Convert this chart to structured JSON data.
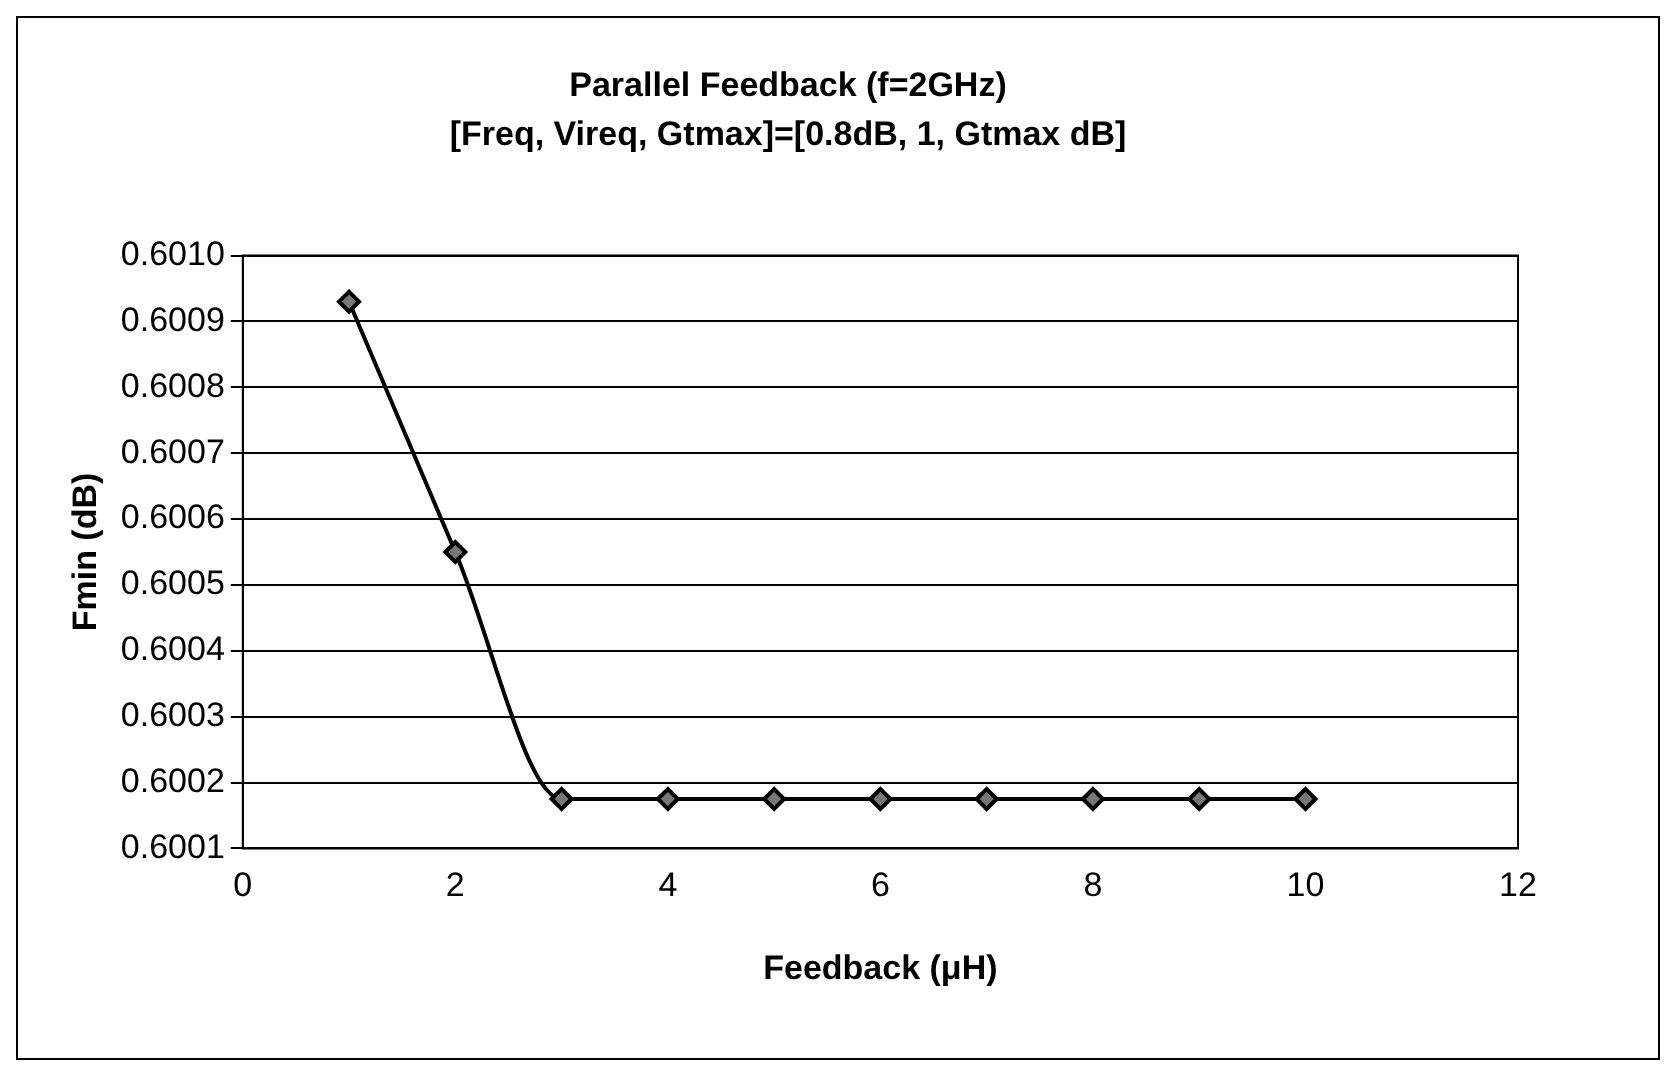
{
  "chart_data": {
    "type": "line",
    "title": "Parallel Feedback (f=2GHz)",
    "subtitle": "[Freq, Vireq, Gtmax]=[0.8dB, 1, Gtmax dB]",
    "xlabel": "Feedback (μH)",
    "ylabel": "Fmin (dB)",
    "x": [
      1,
      2,
      3,
      4,
      5,
      6,
      7,
      8,
      9,
      10
    ],
    "series": [
      {
        "color": "#000000",
        "values": [
          0.60093,
          0.60055,
          0.600175,
          0.600175,
          0.600175,
          0.600175,
          0.600175,
          0.600175,
          0.600175,
          0.600175
        ]
      }
    ],
    "xlim": [
      0,
      12
    ],
    "xticks": [
      0,
      2,
      4,
      6,
      8,
      10,
      12
    ],
    "ylim": [
      0.6001,
      0.601
    ],
    "yticks": [
      {
        "value": 0.6001,
        "label": "0.6001"
      },
      {
        "value": 0.6002,
        "label": "0.6002"
      },
      {
        "value": 0.6003,
        "label": "0.6003"
      },
      {
        "value": 0.6004,
        "label": "0.6004"
      },
      {
        "value": 0.6005,
        "label": "0.6005"
      },
      {
        "value": 0.6006,
        "label": "0.6006"
      },
      {
        "value": 0.6007,
        "label": "0.6007"
      },
      {
        "value": 0.6008,
        "label": "0.6008"
      },
      {
        "value": 0.6009,
        "label": "0.6009"
      },
      {
        "value": 0.601,
        "label": "0.6010"
      }
    ],
    "grid": "y",
    "legend": false,
    "marker": "diamond",
    "line_style": "solid"
  }
}
